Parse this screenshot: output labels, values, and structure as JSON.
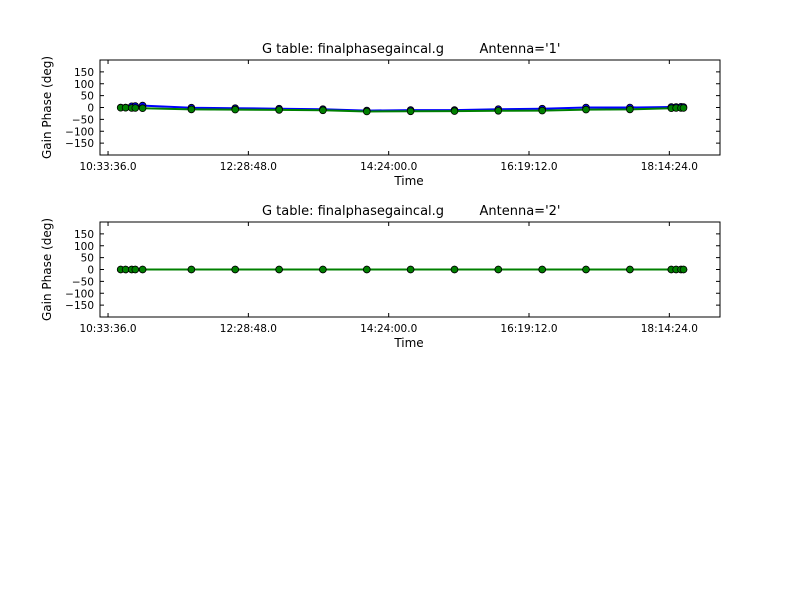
{
  "chart_data": [
    {
      "type": "line",
      "title_left": "G table: finalphasegaincal.g",
      "title_right": "Antenna='1'",
      "xlabel": "Time",
      "ylabel": "Gain Phase (deg)",
      "ylim": [
        -200,
        200
      ],
      "yticks": [
        -150,
        -100,
        -50,
        0,
        50,
        100,
        150
      ],
      "xlim": [
        "10:27:00",
        "18:56:00"
      ],
      "xticks": [
        "10:33:36.0",
        "12:28:48.0",
        "14:24:00.0",
        "16:19:12.0",
        "18:14:24.0"
      ],
      "x": [
        "10:44:00",
        "10:48:00",
        "10:53:00",
        "10:56:00",
        "11:02:00",
        "11:42:00",
        "12:18:00",
        "12:54:00",
        "13:30:00",
        "14:06:00",
        "14:42:00",
        "15:18:00",
        "15:54:00",
        "16:30:00",
        "17:06:00",
        "17:42:00",
        "18:16:00",
        "18:20:00",
        "18:24:00",
        "18:26:00"
      ],
      "series": [
        {
          "color": "#0000ff",
          "values": [
            0,
            0,
            5,
            6,
            8,
            -1,
            -3,
            -5,
            -7,
            -13,
            -11,
            -11,
            -7,
            -5,
            0,
            0,
            2,
            2,
            3,
            2
          ]
        },
        {
          "color": "#008000",
          "values": [
            -1,
            -1,
            -2,
            -2,
            -3,
            -8,
            -9,
            -10,
            -12,
            -17,
            -16,
            -15,
            -14,
            -13,
            -9,
            -8,
            -3,
            -2,
            -2,
            -2
          ]
        }
      ]
    },
    {
      "type": "line",
      "title_left": "G table: finalphasegaincal.g",
      "title_right": "Antenna='2'",
      "xlabel": "Time",
      "ylabel": "Gain Phase (deg)",
      "ylim": [
        -200,
        200
      ],
      "yticks": [
        -150,
        -100,
        -50,
        0,
        50,
        100,
        150
      ],
      "xlim": [
        "10:27:00",
        "18:56:00"
      ],
      "xticks": [
        "10:33:36.0",
        "12:28:48.0",
        "14:24:00.0",
        "16:19:12.0",
        "18:14:24.0"
      ],
      "x": [
        "10:44:00",
        "10:48:00",
        "10:53:00",
        "10:56:00",
        "11:02:00",
        "11:42:00",
        "12:18:00",
        "12:54:00",
        "13:30:00",
        "14:06:00",
        "14:42:00",
        "15:18:00",
        "15:54:00",
        "16:30:00",
        "17:06:00",
        "17:42:00",
        "18:16:00",
        "18:20:00",
        "18:24:00",
        "18:26:00"
      ],
      "series": [
        {
          "color": "#0000ff",
          "values": [
            0,
            0,
            0,
            0,
            0,
            0,
            0,
            0,
            0,
            0,
            0,
            0,
            0,
            0,
            0,
            0,
            0,
            0,
            0,
            0
          ]
        },
        {
          "color": "#008000",
          "values": [
            0,
            0,
            0,
            0,
            0,
            0,
            0,
            0,
            0,
            0,
            0,
            0,
            0,
            0,
            0,
            0,
            0,
            0,
            0,
            0
          ]
        }
      ]
    }
  ]
}
